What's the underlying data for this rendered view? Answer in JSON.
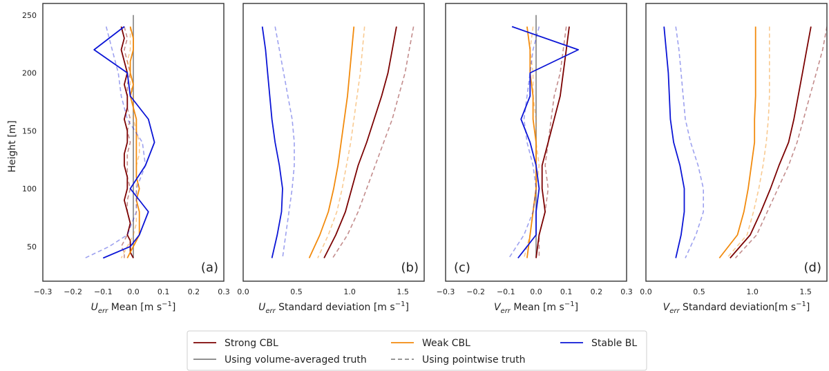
{
  "figure": {
    "ylabel": "Height [m]",
    "legend": {
      "placement": "bottom-center",
      "entries": [
        {
          "label": "Strong CBL",
          "color": "#7b0000",
          "dash": false
        },
        {
          "label": "Using volume-averaged truth",
          "color": "#808080",
          "dash": false
        },
        {
          "label": "Weak CBL",
          "color": "#f28a0c",
          "dash": false
        },
        {
          "label": "Using pointwise truth",
          "color": "#888888",
          "dash": true
        },
        {
          "label": "Stable BL",
          "color": "#0a14d6",
          "dash": false
        }
      ]
    }
  },
  "chart_data": [
    {
      "type": "line",
      "panel": "(a)",
      "xlabel_base": "U",
      "xlabel_sub": "err",
      "xlabel_rest": " Mean [m s",
      "xlabel_sup": "−1",
      "xlabel_end": "]",
      "xlim": [
        -0.3,
        0.3
      ],
      "xticks": [
        "−0.3",
        "−0.2",
        "−0.1",
        "0.0",
        "0.1",
        "0.2",
        "0.3"
      ],
      "xtick_values": [
        -0.3,
        -0.2,
        -0.1,
        0.0,
        0.1,
        0.2,
        0.3
      ],
      "ylim": [
        20,
        260
      ],
      "yticks": [
        "50",
        "100",
        "150",
        "200",
        "250"
      ],
      "ytick_values": [
        50,
        100,
        150,
        200,
        250
      ],
      "show_yticks": true,
      "zero_line": true,
      "series": [
        {
          "name": "Strong CBL",
          "color": "#7b0000",
          "dashed": false,
          "opacity": 1,
          "x": [
            -0.04,
            -0.03,
            -0.04,
            -0.03,
            -0.02,
            -0.03,
            -0.02,
            -0.02,
            -0.03,
            -0.02,
            -0.02,
            -0.03,
            -0.03,
            -0.02,
            -0.02,
            -0.03,
            -0.02,
            -0.01,
            -0.02,
            -0.01,
            -0.01,
            -0.01,
            0.0
          ],
          "y": [
            240,
            230,
            220,
            210,
            200,
            190,
            180,
            170,
            160,
            150,
            140,
            130,
            120,
            110,
            100,
            90,
            80,
            70,
            60,
            55,
            50,
            45,
            40
          ]
        },
        {
          "name": "Strong CBL (pointwise)",
          "color": "#7b0000",
          "dashed": true,
          "opacity": 0.45,
          "x": [
            -0.03,
            -0.02,
            -0.03,
            -0.02,
            -0.01,
            -0.02,
            -0.02,
            -0.02,
            -0.01,
            -0.02,
            -0.01,
            -0.02,
            -0.02,
            -0.02,
            -0.01,
            -0.02,
            -0.02,
            -0.01,
            -0.02,
            -0.03,
            -0.04,
            -0.03,
            -0.03
          ],
          "y": [
            240,
            230,
            220,
            210,
            200,
            190,
            180,
            170,
            160,
            150,
            140,
            130,
            120,
            110,
            100,
            90,
            80,
            70,
            60,
            55,
            50,
            45,
            40
          ]
        },
        {
          "name": "Weak CBL",
          "color": "#f28a0c",
          "dashed": false,
          "opacity": 1,
          "x": [
            -0.01,
            0.0,
            0.0,
            -0.01,
            -0.01,
            0.0,
            -0.01,
            0.0,
            0.01,
            0.01,
            0.01,
            0.01,
            0.01,
            0.01,
            0.02,
            0.01,
            0.02,
            0.02,
            0.02,
            0.01,
            0.0,
            -0.01,
            -0.02
          ],
          "y": [
            240,
            230,
            220,
            210,
            200,
            190,
            180,
            170,
            160,
            150,
            140,
            130,
            120,
            110,
            100,
            90,
            80,
            70,
            60,
            55,
            50,
            45,
            40
          ]
        },
        {
          "name": "Weak CBL (pointwise)",
          "color": "#f28a0c",
          "dashed": true,
          "opacity": 0.45,
          "x": [
            -0.01,
            -0.01,
            -0.01,
            -0.02,
            -0.01,
            -0.01,
            0.0,
            0.0,
            0.0,
            0.01,
            0.02,
            0.02,
            0.01,
            0.01,
            0.01,
            0.01,
            0.01,
            0.01,
            0.0,
            -0.01,
            -0.02,
            -0.03,
            -0.04
          ],
          "y": [
            240,
            230,
            220,
            210,
            200,
            190,
            180,
            170,
            160,
            150,
            140,
            130,
            120,
            110,
            100,
            90,
            80,
            70,
            60,
            55,
            50,
            45,
            40
          ]
        },
        {
          "name": "Stable BL",
          "color": "#0a14d6",
          "dashed": false,
          "opacity": 1,
          "x": [
            -0.03,
            -0.13,
            -0.02,
            -0.01,
            0.05,
            0.07,
            0.04,
            -0.01,
            0.05,
            0.02,
            -0.01,
            -0.1
          ],
          "y": [
            240,
            220,
            200,
            180,
            160,
            140,
            120,
            100,
            80,
            60,
            50,
            40
          ]
        },
        {
          "name": "Stable BL (pointwise)",
          "color": "#0a14d6",
          "dashed": true,
          "opacity": 0.4,
          "x": [
            -0.09,
            -0.07,
            -0.05,
            -0.04,
            -0.02,
            0.03,
            0.04,
            0.01,
            0.01,
            -0.02,
            -0.08,
            -0.16
          ],
          "y": [
            240,
            220,
            200,
            180,
            160,
            140,
            120,
            100,
            80,
            60,
            50,
            40
          ]
        }
      ]
    },
    {
      "type": "line",
      "panel": "(b)",
      "xlabel_base": "U",
      "xlabel_sub": "err",
      "xlabel_rest": " Standard deviation [m s",
      "xlabel_sup": "−1",
      "xlabel_end": "]",
      "xlim": [
        0.0,
        1.7
      ],
      "xticks": [
        "0.0",
        "0.5",
        "1.0",
        "1.5"
      ],
      "xtick_values": [
        0.0,
        0.5,
        1.0,
        1.5
      ],
      "ylim": [
        20,
        260
      ],
      "yticks": [],
      "ytick_values": [],
      "show_yticks": false,
      "zero_line": false,
      "series": [
        {
          "name": "Strong CBL",
          "color": "#7b0000",
          "dashed": false,
          "opacity": 1,
          "x": [
            1.44,
            1.4,
            1.36,
            1.3,
            1.23,
            1.16,
            1.08,
            1.02,
            0.96,
            0.87,
            0.76
          ],
          "y": [
            240,
            220,
            200,
            180,
            160,
            140,
            120,
            100,
            80,
            60,
            40
          ]
        },
        {
          "name": "Strong CBL (pointwise)",
          "color": "#7b0000",
          "dashed": true,
          "opacity": 0.45,
          "x": [
            1.6,
            1.56,
            1.52,
            1.46,
            1.4,
            1.32,
            1.24,
            1.16,
            1.08,
            0.98,
            0.84
          ],
          "y": [
            240,
            220,
            200,
            180,
            160,
            140,
            120,
            100,
            80,
            60,
            40
          ]
        },
        {
          "name": "Weak CBL",
          "color": "#f28a0c",
          "dashed": false,
          "opacity": 1,
          "x": [
            1.04,
            1.02,
            1.0,
            0.98,
            0.95,
            0.92,
            0.89,
            0.85,
            0.8,
            0.72,
            0.62
          ],
          "y": [
            240,
            220,
            200,
            180,
            160,
            140,
            120,
            100,
            80,
            60,
            40
          ]
        },
        {
          "name": "Weak CBL (pointwise)",
          "color": "#f28a0c",
          "dashed": true,
          "opacity": 0.45,
          "x": [
            1.14,
            1.12,
            1.1,
            1.07,
            1.04,
            1.01,
            0.97,
            0.93,
            0.88,
            0.8,
            0.7
          ],
          "y": [
            240,
            220,
            200,
            180,
            160,
            140,
            120,
            100,
            80,
            60,
            40
          ]
        },
        {
          "name": "Stable BL",
          "color": "#0a14d6",
          "dashed": false,
          "opacity": 1,
          "x": [
            0.18,
            0.21,
            0.23,
            0.25,
            0.27,
            0.3,
            0.34,
            0.37,
            0.36,
            0.32,
            0.27
          ],
          "y": [
            240,
            220,
            200,
            180,
            160,
            140,
            120,
            100,
            80,
            60,
            40
          ]
        },
        {
          "name": "Stable BL (pointwise)",
          "color": "#0a14d6",
          "dashed": true,
          "opacity": 0.4,
          "x": [
            0.3,
            0.34,
            0.38,
            0.42,
            0.46,
            0.48,
            0.48,
            0.46,
            0.43,
            0.4,
            0.37
          ],
          "y": [
            240,
            220,
            200,
            180,
            160,
            140,
            120,
            100,
            80,
            60,
            40
          ]
        }
      ]
    },
    {
      "type": "line",
      "panel": "(c)",
      "xlabel_base": "V",
      "xlabel_sub": "err",
      "xlabel_rest": " Mean [m s",
      "xlabel_sup": "−1",
      "xlabel_end": "]",
      "xlim": [
        -0.3,
        0.3
      ],
      "xticks": [
        "−0.3",
        "−0.2",
        "−0.1",
        "0.0",
        "0.1",
        "0.2",
        "0.3"
      ],
      "xtick_values": [
        -0.3,
        -0.2,
        -0.1,
        0.0,
        0.1,
        0.2,
        0.3
      ],
      "ylim": [
        20,
        260
      ],
      "yticks": [],
      "ytick_values": [],
      "show_yticks": false,
      "zero_line": true,
      "series": [
        {
          "name": "Strong CBL",
          "color": "#7b0000",
          "dashed": false,
          "opacity": 1,
          "x": [
            0.11,
            0.1,
            0.09,
            0.08,
            0.06,
            0.04,
            0.02,
            0.02,
            0.03,
            0.01,
            0.0
          ],
          "y": [
            240,
            220,
            200,
            180,
            160,
            140,
            120,
            100,
            80,
            60,
            40
          ]
        },
        {
          "name": "Strong CBL (pointwise)",
          "color": "#7b0000",
          "dashed": true,
          "opacity": 0.45,
          "x": [
            0.1,
            0.09,
            0.08,
            0.06,
            0.05,
            0.04,
            0.03,
            0.04,
            0.03,
            0.01,
            0.01
          ],
          "y": [
            240,
            220,
            200,
            180,
            160,
            140,
            120,
            100,
            80,
            60,
            40
          ]
        },
        {
          "name": "Weak CBL",
          "color": "#f28a0c",
          "dashed": false,
          "opacity": 1,
          "x": [
            -0.03,
            -0.02,
            -0.02,
            -0.01,
            -0.01,
            0.0,
            0.0,
            0.0,
            -0.01,
            -0.02,
            -0.03
          ],
          "y": [
            240,
            220,
            200,
            180,
            160,
            140,
            120,
            100,
            80,
            60,
            40
          ]
        },
        {
          "name": "Weak CBL (pointwise)",
          "color": "#f28a0c",
          "dashed": true,
          "opacity": 0.45,
          "x": [
            -0.01,
            -0.02,
            -0.01,
            -0.01,
            0.0,
            0.0,
            0.01,
            0.0,
            -0.01,
            -0.02,
            -0.04
          ],
          "y": [
            240,
            220,
            200,
            180,
            160,
            140,
            120,
            100,
            80,
            60,
            40
          ]
        },
        {
          "name": "Stable BL",
          "color": "#0a14d6",
          "dashed": false,
          "opacity": 1,
          "x": [
            -0.08,
            0.14,
            -0.02,
            -0.02,
            -0.05,
            -0.02,
            0.0,
            0.01,
            0.0,
            0.0,
            -0.06
          ],
          "y": [
            240,
            220,
            200,
            180,
            160,
            140,
            120,
            100,
            80,
            60,
            40
          ]
        },
        {
          "name": "Stable BL (pointwise)",
          "color": "#0a14d6",
          "dashed": true,
          "opacity": 0.4,
          "x": [
            0.01,
            -0.01,
            -0.02,
            -0.03,
            -0.04,
            -0.03,
            -0.01,
            0.0,
            -0.01,
            -0.04,
            -0.09
          ],
          "y": [
            240,
            220,
            200,
            180,
            160,
            140,
            120,
            100,
            80,
            60,
            40
          ]
        }
      ]
    },
    {
      "type": "line",
      "panel": "(d)",
      "xlabel_base": "V",
      "xlabel_sub": "err",
      "xlabel_rest": " Standard deviation[m s",
      "xlabel_sup": "−1",
      "xlabel_end": "]",
      "xlim": [
        0.0,
        1.7
      ],
      "xticks": [
        "0.0",
        "0.5",
        "1.0",
        "1.5"
      ],
      "xtick_values": [
        0.0,
        0.5,
        1.0,
        1.5
      ],
      "ylim": [
        20,
        260
      ],
      "yticks": [],
      "ytick_values": [],
      "show_yticks": false,
      "zero_line": false,
      "series": [
        {
          "name": "Strong CBL",
          "color": "#7b0000",
          "dashed": false,
          "opacity": 1,
          "x": [
            1.55,
            1.51,
            1.47,
            1.43,
            1.39,
            1.34,
            1.25,
            1.17,
            1.08,
            0.98,
            0.79
          ],
          "y": [
            240,
            220,
            200,
            180,
            160,
            140,
            120,
            100,
            80,
            60,
            40
          ]
        },
        {
          "name": "Strong CBL (pointwise)",
          "color": "#7b0000",
          "dashed": true,
          "opacity": 0.45,
          "x": [
            1.7,
            1.66,
            1.6,
            1.54,
            1.48,
            1.42,
            1.34,
            1.24,
            1.14,
            1.04,
            0.84
          ],
          "y": [
            240,
            220,
            200,
            180,
            160,
            140,
            120,
            100,
            80,
            60,
            40
          ]
        },
        {
          "name": "Weak CBL",
          "color": "#f28a0c",
          "dashed": false,
          "opacity": 1,
          "x": [
            1.03,
            1.03,
            1.03,
            1.03,
            1.02,
            1.02,
            0.99,
            0.96,
            0.92,
            0.86,
            0.69
          ],
          "y": [
            240,
            220,
            200,
            180,
            160,
            140,
            120,
            100,
            80,
            60,
            40
          ]
        },
        {
          "name": "Weak CBL (pointwise)",
          "color": "#f28a0c",
          "dashed": true,
          "opacity": 0.45,
          "x": [
            1.16,
            1.16,
            1.16,
            1.16,
            1.15,
            1.13,
            1.1,
            1.06,
            1.01,
            0.95,
            0.76
          ],
          "y": [
            240,
            220,
            200,
            180,
            160,
            140,
            120,
            100,
            80,
            60,
            40
          ]
        },
        {
          "name": "Stable BL",
          "color": "#0a14d6",
          "dashed": false,
          "opacity": 1,
          "x": [
            0.17,
            0.19,
            0.21,
            0.22,
            0.23,
            0.26,
            0.32,
            0.36,
            0.36,
            0.33,
            0.28
          ],
          "y": [
            240,
            220,
            200,
            180,
            160,
            140,
            120,
            100,
            80,
            60,
            40
          ]
        },
        {
          "name": "Stable BL (pointwise)",
          "color": "#0a14d6",
          "dashed": true,
          "opacity": 0.4,
          "x": [
            0.28,
            0.31,
            0.33,
            0.35,
            0.37,
            0.42,
            0.49,
            0.54,
            0.54,
            0.47,
            0.37
          ],
          "y": [
            240,
            220,
            200,
            180,
            160,
            140,
            120,
            100,
            80,
            60,
            40
          ]
        }
      ]
    }
  ]
}
